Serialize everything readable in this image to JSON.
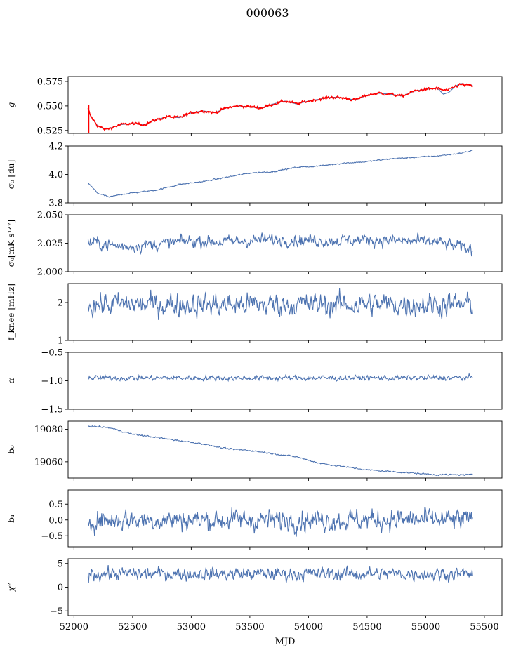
{
  "suptitle": "000063",
  "chart_data": {
    "type": "line",
    "shared_x": {
      "label": "MJD",
      "range": [
        51950,
        55650
      ],
      "ticks": [
        52000,
        52500,
        53000,
        53500,
        54000,
        54500,
        55000,
        55500
      ],
      "tick_labels": [
        "52000",
        "52500",
        "53000",
        "53500",
        "54000",
        "54500",
        "55000",
        "55500"
      ],
      "data_range": [
        52120,
        55400
      ]
    },
    "colors": {
      "series": "#4c72b0",
      "red": "#ff0000"
    },
    "panels": [
      {
        "id": "g",
        "ylabel": "g",
        "ylim": [
          0.522,
          0.58
        ],
        "yticks": [
          0.525,
          0.55,
          0.575
        ],
        "ytick_labels": [
          "0.525",
          "0.550",
          "0.575"
        ],
        "series": [
          {
            "color": "#4c72b0",
            "kind": "smooth",
            "x": [
              52120,
              52140,
              52200,
              52260,
              52300,
              52400,
              52500,
              52600,
              52700,
              52800,
              52900,
              53000,
              53100,
              53200,
              53300,
              53400,
              53500,
              53600,
              53700,
              53800,
              53900,
              54000,
              54100,
              54200,
              54300,
              54400,
              54500,
              54600,
              54700,
              54800,
              54900,
              55000,
              55100,
              55150,
              55200,
              55250,
              55300,
              55350,
              55400
            ],
            "y": [
              0.547,
              0.54,
              0.53,
              0.526,
              0.527,
              0.531,
              0.532,
              0.531,
              0.536,
              0.539,
              0.538,
              0.543,
              0.545,
              0.543,
              0.548,
              0.55,
              0.549,
              0.548,
              0.552,
              0.555,
              0.552,
              0.555,
              0.557,
              0.559,
              0.558,
              0.556,
              0.561,
              0.563,
              0.562,
              0.56,
              0.565,
              0.567,
              0.568,
              0.562,
              0.564,
              0.57,
              0.573,
              0.572,
              0.571
            ]
          },
          {
            "color": "#ff0000",
            "kind": "noisy",
            "noise": 0.0009,
            "x": [
              52120,
              52140,
              52200,
              52260,
              52300,
              52400,
              52500,
              52600,
              52700,
              52800,
              52900,
              53000,
              53100,
              53200,
              53300,
              53400,
              53500,
              53600,
              53700,
              53800,
              53900,
              54000,
              54100,
              54200,
              54300,
              54400,
              54500,
              54600,
              54700,
              54800,
              54900,
              55000,
              55100,
              55150,
              55200,
              55250,
              55300,
              55350,
              55400
            ],
            "y": [
              0.547,
              0.54,
              0.53,
              0.526,
              0.527,
              0.531,
              0.532,
              0.531,
              0.536,
              0.539,
              0.538,
              0.543,
              0.545,
              0.543,
              0.548,
              0.55,
              0.549,
              0.548,
              0.552,
              0.555,
              0.552,
              0.555,
              0.557,
              0.559,
              0.558,
              0.556,
              0.561,
              0.563,
              0.562,
              0.56,
              0.565,
              0.567,
              0.568,
              0.566,
              0.566,
              0.57,
              0.572,
              0.571,
              0.57
            ]
          }
        ]
      },
      {
        "id": "sigma0-du",
        "ylabel": "σ₀ [du]",
        "ylim": [
          3.8,
          4.2
        ],
        "yticks": [
          3.8,
          4.0,
          4.2
        ],
        "ytick_labels": [
          "3.8",
          "4.0",
          "4.2"
        ],
        "series": [
          {
            "color": "#4c72b0",
            "kind": "noisy",
            "noise": 0.003,
            "x": [
              52120,
              52200,
              52300,
              52400,
              52500,
              52700,
              52900,
              53100,
              53300,
              53500,
              53700,
              53900,
              54100,
              54300,
              54500,
              54700,
              54900,
              55100,
              55300,
              55400
            ],
            "y": [
              3.94,
              3.87,
              3.84,
              3.86,
              3.87,
              3.89,
              3.93,
              3.95,
              3.98,
              4.01,
              4.02,
              4.05,
              4.06,
              4.08,
              4.09,
              4.11,
              4.12,
              4.13,
              4.15,
              4.17
            ]
          }
        ]
      },
      {
        "id": "sigma0-mks",
        "ylabel": "σ₀[mK s¹ᐟ²]",
        "ylim": [
          2.0,
          2.05
        ],
        "yticks": [
          2.0,
          2.025,
          2.05
        ],
        "ytick_labels": [
          "2.000",
          "2.025",
          "2.050"
        ],
        "series": [
          {
            "color": "#4c72b0",
            "kind": "noisy",
            "noise": 0.0035,
            "x": [
              52120,
              52400,
              52700,
              53000,
              53300,
              53600,
              53900,
              54200,
              54500,
              54800,
              55100,
              55400
            ],
            "y": [
              2.026,
              2.022,
              2.024,
              2.027,
              2.026,
              2.028,
              2.028,
              2.027,
              2.028,
              2.027,
              2.026,
              2.019
            ]
          }
        ]
      },
      {
        "id": "fknee",
        "ylabel": "f_knee [mHz]",
        "ylim": [
          1.0,
          2.5
        ],
        "yticks": [
          1,
          2
        ],
        "ytick_labels": [
          "1",
          "2"
        ],
        "series": [
          {
            "color": "#4c72b0",
            "kind": "noisy",
            "noise": 0.2,
            "x": [
              52120,
              55400
            ],
            "y": [
              1.95,
              1.95
            ]
          }
        ]
      },
      {
        "id": "alpha",
        "ylabel": "α",
        "ylim": [
          -1.5,
          -0.5
        ],
        "yticks": [
          -1.5,
          -1.0,
          -0.5
        ],
        "ytick_labels": [
          "−1.5",
          "−1.0",
          "−0.5"
        ],
        "series": [
          {
            "color": "#4c72b0",
            "kind": "noisy",
            "noise": 0.03,
            "x": [
              52120,
              55400
            ],
            "y": [
              -0.95,
              -0.95
            ]
          }
        ]
      },
      {
        "id": "b0",
        "ylabel": "b₀",
        "ylim": [
          19050,
          19085
        ],
        "yticks": [
          19060,
          19080
        ],
        "ytick_labels": [
          "19060",
          "19080"
        ],
        "series": [
          {
            "color": "#4c72b0",
            "kind": "noisy",
            "noise": 0.3,
            "x": [
              52120,
              52300,
              52500,
              52700,
              52900,
              53100,
              53300,
              53500,
              53700,
              53900,
              54100,
              54300,
              54500,
              54700,
              54900,
              55100,
              55300,
              55400
            ],
            "y": [
              19082,
              19081,
              19077,
              19075,
              19073,
              19071,
              19068,
              19067,
              19065,
              19063,
              19059,
              19057,
              19055,
              19054,
              19053,
              19052,
              19052,
              19052
            ]
          }
        ]
      },
      {
        "id": "b1",
        "ylabel": "b₁",
        "ylim": [
          -0.85,
          0.95
        ],
        "yticks": [
          -0.5,
          0.0,
          0.5
        ],
        "ytick_labels": [
          "−0.5",
          "0.0",
          "0.5"
        ],
        "series": [
          {
            "color": "#4c72b0",
            "kind": "noisy",
            "noise": 0.22,
            "x": [
              52120,
              55400
            ],
            "y": [
              0.0,
              0.0
            ]
          }
        ]
      },
      {
        "id": "chi2",
        "ylabel": "χ²",
        "ylim": [
          -6,
          6
        ],
        "yticks": [
          -5,
          0,
          5
        ],
        "ytick_labels": [
          "−5",
          "0",
          "5"
        ],
        "series": [
          {
            "color": "#4c72b0",
            "kind": "noisy",
            "noise": 0.9,
            "x": [
              52120,
              55400
            ],
            "y": [
              2.8,
              2.8
            ]
          }
        ]
      }
    ]
  }
}
